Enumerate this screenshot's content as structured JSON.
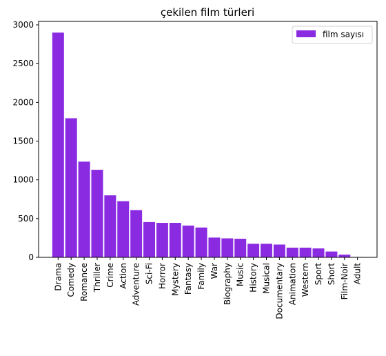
{
  "chart_data": {
    "type": "bar",
    "title": "çekilen film türleri",
    "xlabel": "",
    "ylabel": "",
    "categories": [
      "Drama",
      "Comedy",
      "Romance",
      "Thriller",
      "Crime",
      "Action",
      "Adventure",
      "Sci-Fi",
      "Horror",
      "Mystery",
      "Fantasy",
      "Family",
      "War",
      "Biography",
      "Music",
      "History",
      "Musical",
      "Documentary",
      "Animation",
      "Western",
      "Sport",
      "Short",
      "Film-Noir",
      "Adult"
    ],
    "series": [
      {
        "name": "film sayısı",
        "color": "#8a2be2",
        "values": [
          2900,
          1795,
          1235,
          1130,
          800,
          725,
          610,
          455,
          445,
          445,
          410,
          385,
          255,
          245,
          240,
          175,
          175,
          165,
          125,
          125,
          115,
          75,
          35,
          5
        ]
      }
    ],
    "ylim": [
      0,
      3045
    ],
    "yticks": [
      0,
      500,
      1000,
      1500,
      2000,
      2500,
      3000
    ],
    "legend_position": "top-right",
    "grid": false
  }
}
